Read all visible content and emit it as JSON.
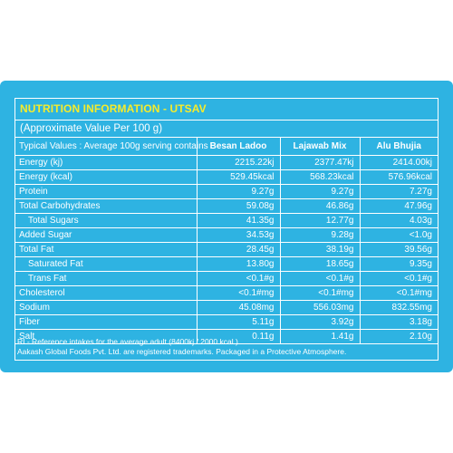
{
  "panel": {
    "title": "NUTRITION INFORMATION - UTSAV",
    "subtitle": "(Approximate Value Per 100 g)"
  },
  "table": {
    "headers": [
      "Typical Values : Average 100g serving contains",
      "Besan Ladoo",
      "Lajawab Mix",
      "Alu Bhujia"
    ],
    "rows": [
      {
        "label": "Energy (kj)",
        "values": [
          "2215.22kj",
          "2377.47kj",
          "2414.00kj"
        ]
      },
      {
        "label": "Energy (kcal)",
        "values": [
          "529.45kcal",
          "568.23kcal",
          "576.96kcal"
        ]
      },
      {
        "label": "Protein",
        "values": [
          "9.27g",
          "9.27g",
          "7.27g"
        ]
      },
      {
        "label": "Total Carbohydrates",
        "values": [
          "59.08g",
          "46.86g",
          "47.96g"
        ]
      },
      {
        "label": "Total Sugars",
        "values": [
          "41.35g",
          "12.77g",
          "4.03g"
        ]
      },
      {
        "label": "Added Sugar",
        "values": [
          "34.53g",
          "9.28g",
          "<1.0g"
        ]
      },
      {
        "label": "Total Fat",
        "values": [
          "28.45g",
          "38.19g",
          "39.56g"
        ]
      },
      {
        "label": "Saturated Fat",
        "values": [
          "13.80g",
          "18.65g",
          "9.35g"
        ]
      },
      {
        "label": "Trans Fat",
        "values": [
          "<0.1#g",
          "<0.1#g",
          "<0.1#g"
        ]
      },
      {
        "label": "Cholesterol",
        "values": [
          "<0.1#mg",
          "<0.1#mg",
          "<0.1#mg"
        ]
      },
      {
        "label": "Sodium",
        "values": [
          "45.08mg",
          "556.03mg",
          "832.55mg"
        ]
      },
      {
        "label": "Fiber",
        "values": [
          "5.11g",
          "3.92g",
          "3.18g"
        ]
      },
      {
        "label": "Salt",
        "values": [
          "0.11g",
          "1.41g",
          "2.10g"
        ]
      }
    ]
  },
  "footer": {
    "line1": "RI - Reference intakes for the average adult (8400kj / 2000 kcal )",
    "line2": "Aakash Global Foods Pvt. Ltd. are registered trademarks. Packaged in a Protective Atmosphere."
  },
  "colors": {
    "background": "#2eb3e2",
    "title": "#f7ec2a",
    "text": "#ffffff"
  }
}
